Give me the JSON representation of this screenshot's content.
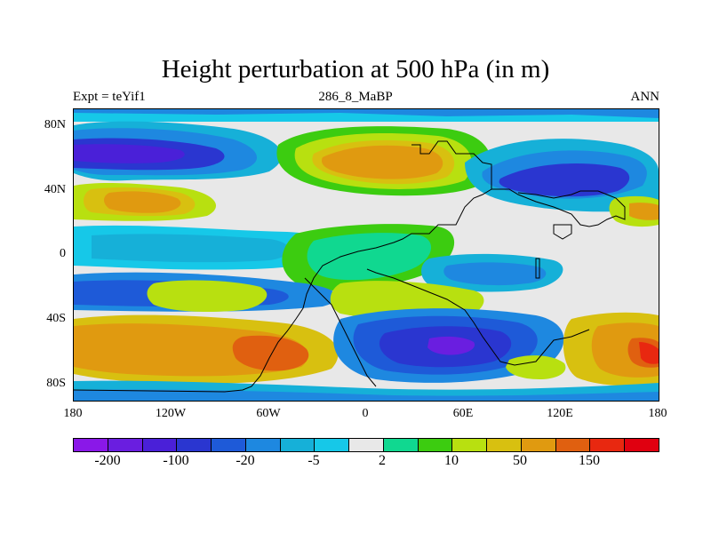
{
  "title": "Height perturbation at 500 hPa (in m)",
  "subtitle_left": "Expt = teYif1",
  "subtitle_center": "286_8_MaBP",
  "subtitle_right": "ANN",
  "x_ticks": [
    "180",
    "120W",
    "60W",
    "0",
    "60E",
    "120E",
    "180"
  ],
  "y_ticks": [
    "80N",
    "40N",
    "0",
    "40S",
    "80S"
  ],
  "colorbar": {
    "colors": [
      "#8a18e8",
      "#6a1ee0",
      "#4a20d8",
      "#2a36d0",
      "#1e5ad8",
      "#1e88e0",
      "#16b0d8",
      "#16c8e8",
      "#e8e8e8",
      "#10d890",
      "#3ccc10",
      "#b8e010",
      "#d8c010",
      "#e09a10",
      "#e06010",
      "#e82810",
      "#e00010"
    ],
    "labels": [
      "-200",
      "-100",
      "-20",
      "-5",
      "2",
      "10",
      "50",
      "150"
    ]
  },
  "colors": {
    "deep_blue": "#2a36d0",
    "blue": "#1e5ad8",
    "light_blue": "#1e88e0",
    "cyan": "#16b0d8",
    "aqua": "#16c8e8",
    "grey": "#e8e8e8",
    "mint": "#10d890",
    "green": "#3ccc10",
    "lime": "#b8e010",
    "yellow": "#d8c010",
    "orange": "#e09a10",
    "dark_orange": "#e06010",
    "red": "#e82810"
  }
}
